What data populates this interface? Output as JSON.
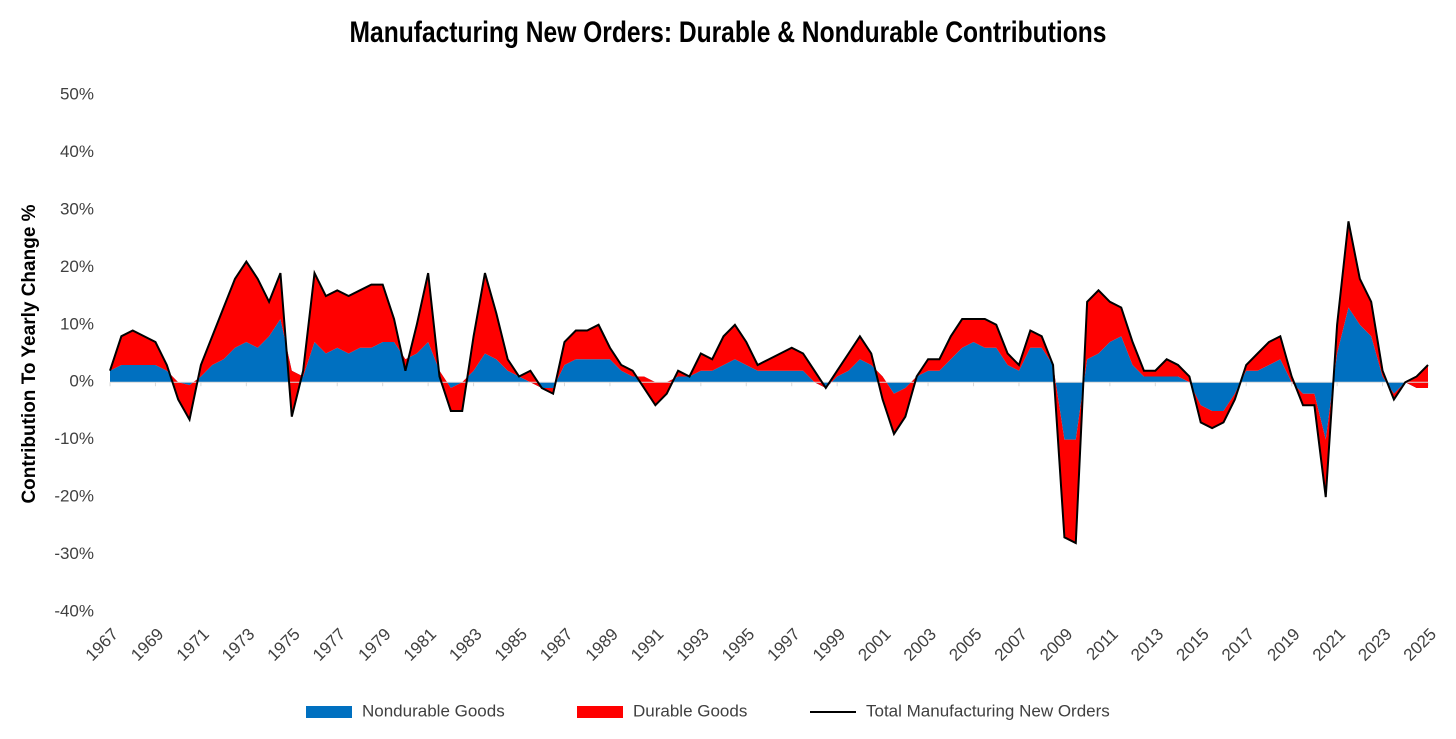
{
  "chart_data": {
    "type": "stacked_area_line",
    "title": "Manufacturing New Orders: Durable & Nondurable Contributions",
    "y_label": "Contribution To Yearly Change %",
    "xlim": [
      1967,
      2025
    ],
    "xticks": [
      1967,
      1969,
      1971,
      1973,
      1975,
      1977,
      1979,
      1981,
      1983,
      1985,
      1987,
      1989,
      1991,
      1993,
      1995,
      1997,
      1999,
      2001,
      2003,
      2005,
      2007,
      2009,
      2011,
      2013,
      2015,
      2017,
      2019,
      2021,
      2023,
      2025
    ],
    "ylim": [
      -40,
      50
    ],
    "yticks": [
      {
        "value": -40,
        "label": "-40%"
      },
      {
        "value": -30,
        "label": "-30%"
      },
      {
        "value": -20,
        "label": "-20%"
      },
      {
        "value": -10,
        "label": "-10%"
      },
      {
        "value": 0,
        "label": "0%"
      },
      {
        "value": 10,
        "label": "10%"
      },
      {
        "value": 20,
        "label": "20%"
      },
      {
        "value": 30,
        "label": "30%"
      },
      {
        "value": 40,
        "label": "40%"
      },
      {
        "value": 50,
        "label": "50%"
      }
    ],
    "legend": "bottom",
    "x": [
      1967,
      1967.5,
      1968,
      1968.5,
      1969,
      1969.5,
      1970,
      1970.5,
      1971,
      1971.5,
      1972,
      1972.5,
      1973,
      1973.5,
      1974,
      1974.5,
      1975,
      1975.5,
      1976,
      1976.5,
      1977,
      1977.5,
      1978,
      1978.5,
      1979,
      1979.5,
      1980,
      1980.5,
      1981,
      1981.5,
      1982,
      1982.5,
      1983,
      1983.5,
      1984,
      1984.5,
      1985,
      1985.5,
      1986,
      1986.5,
      1987,
      1987.5,
      1988,
      1988.5,
      1989,
      1989.5,
      1990,
      1990.5,
      1991,
      1991.5,
      1992,
      1992.5,
      1993,
      1993.5,
      1994,
      1994.5,
      1995,
      1995.5,
      1996,
      1996.5,
      1997,
      1997.5,
      1998,
      1998.5,
      1999,
      1999.5,
      2000,
      2000.5,
      2001,
      2001.5,
      2002,
      2002.5,
      2003,
      2003.5,
      2004,
      2004.5,
      2005,
      2005.5,
      2006,
      2006.5,
      2007,
      2007.5,
      2008,
      2008.5,
      2009,
      2009.5,
      2010,
      2010.5,
      2011,
      2011.5,
      2012,
      2012.5,
      2013,
      2013.5,
      2014,
      2014.5,
      2015,
      2015.5,
      2016,
      2016.5,
      2017,
      2017.5,
      2018,
      2018.5,
      2019,
      2019.5,
      2020,
      2020.5,
      2021,
      2021.5,
      2022,
      2022.5,
      2023,
      2023.5,
      2024,
      2024.5,
      2025
    ],
    "series": [
      {
        "name": "Nondurable Goods",
        "color": "#0070c0",
        "stack": true,
        "values": [
          2,
          3,
          3,
          3,
          3,
          2,
          0,
          -0.5,
          1,
          3,
          4,
          6,
          7,
          6,
          8,
          11,
          2,
          1,
          7,
          5,
          6,
          5,
          6,
          6,
          7,
          7,
          4,
          5,
          7,
          2,
          -1,
          0,
          2,
          5,
          4,
          2,
          1,
          0,
          -1,
          -1,
          3,
          4,
          4,
          4,
          4,
          2,
          1,
          1,
          0,
          0,
          1,
          1,
          2,
          2,
          3,
          4,
          3,
          2,
          2,
          2,
          2,
          2,
          0,
          -1,
          1,
          2,
          4,
          3,
          1,
          -2,
          -1,
          1,
          2,
          2,
          4,
          6,
          7,
          6,
          6,
          3,
          2,
          6,
          6,
          3,
          -10,
          -10,
          4,
          5,
          7,
          8,
          3,
          1,
          1,
          1,
          1,
          0,
          -4,
          -5,
          -5,
          -2,
          2,
          2,
          3,
          4,
          0,
          -2,
          -2,
          -10,
          5,
          13,
          10,
          8,
          1,
          -2,
          0,
          -1,
          -1
        ]
      },
      {
        "name": "Durable Goods",
        "color": "#ff0000",
        "stack": true,
        "values": [
          0,
          5,
          6,
          5,
          4,
          1,
          -3,
          -6,
          2,
          5,
          9,
          12,
          14,
          12,
          6,
          8,
          -8,
          1,
          12,
          10,
          10,
          10,
          10,
          11,
          10,
          4,
          -2,
          5,
          12,
          -1,
          -4,
          -5,
          6,
          14,
          8,
          2,
          0,
          2,
          0,
          -1,
          4,
          5,
          5,
          6,
          2,
          1,
          1,
          -2,
          -4,
          -2,
          1,
          0,
          3,
          2,
          5,
          6,
          4,
          1,
          2,
          3,
          4,
          3,
          2,
          0,
          1,
          3,
          4,
          2,
          -4,
          -7,
          -5,
          0,
          2,
          2,
          4,
          5,
          4,
          5,
          4,
          2,
          1,
          3,
          2,
          0,
          -17,
          -18,
          10,
          11,
          7,
          5,
          4,
          1,
          1,
          3,
          2,
          1,
          -3,
          -3,
          -2,
          -1,
          1,
          3,
          4,
          4,
          1,
          -2,
          -2,
          -10,
          5,
          15,
          8,
          6,
          1,
          -1,
          0,
          2,
          4
        ]
      },
      {
        "name": "Total Manufacturing New Orders",
        "color": "#000000",
        "stack": false,
        "values": [
          2,
          8,
          9,
          8,
          7,
          3,
          -3,
          -6.5,
          3,
          8,
          13,
          18,
          21,
          18,
          14,
          19,
          -6,
          2,
          19,
          15,
          16,
          15,
          16,
          17,
          17,
          11,
          2,
          10,
          19,
          1,
          -5,
          -5,
          8,
          19,
          12,
          4,
          1,
          2,
          -1,
          -2,
          7,
          9,
          9,
          10,
          6,
          3,
          2,
          -1,
          -4,
          -2,
          2,
          1,
          5,
          4,
          8,
          10,
          7,
          3,
          4,
          5,
          6,
          5,
          2,
          -1,
          2,
          5,
          8,
          5,
          -3,
          -9,
          -6,
          1,
          4,
          4,
          8,
          11,
          11,
          11,
          10,
          5,
          3,
          9,
          8,
          3,
          -27,
          -28,
          14,
          16,
          14,
          13,
          7,
          2,
          2,
          4,
          3,
          1,
          -7,
          -8,
          -7,
          -3,
          3,
          5,
          7,
          8,
          1,
          -4,
          -4,
          -20,
          10,
          28,
          18,
          14,
          2,
          -3,
          0,
          1,
          3
        ]
      }
    ]
  }
}
